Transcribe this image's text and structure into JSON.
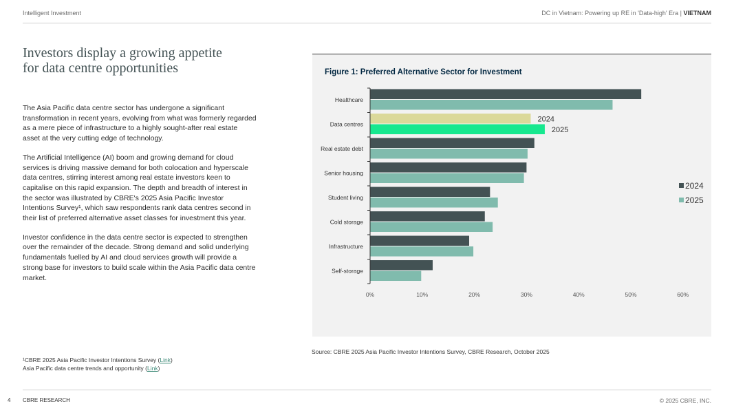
{
  "header": {
    "left": "Intelligent Investment",
    "right_prefix": "DC in Vietnam: Powering up RE in 'Data-high' Era | ",
    "right_country": "VIETNAM"
  },
  "main": {
    "title_line1": "Investors display a growing appetite",
    "title_line2": "for data centre opportunities",
    "paragraphs": [
      "The Asia Pacific data centre sector has undergone a significant transformation in recent years, evolving from what was formerly regarded as a mere piece of infrastructure to a highly sought-after real estate asset at the very cutting edge of technology.",
      "The Artificial Intelligence (AI) boom and growing demand for cloud services is driving massive demand for both colocation and hyperscale data centres, stirring interest among real estate investors keen to capitalise on this rapid expansion. The depth and breadth of interest in the sector was illustrated by CBRE's 2025 Asia Pacific Investor Intentions Survey¹, which saw respondents rank data centres second in their list of preferred alternative asset classes for investment this year.",
      "Investor confidence in the data centre sector is expected to strengthen over the remainder of the decade. Strong demand and solid underlying fundamentals fuelled by AI and cloud services growth will provide a strong base for investors to build scale within the Asia Pacific data centre market."
    ]
  },
  "figure": {
    "title": "Figure 1: Preferred Alternative Sector for Investment",
    "source": "Source: CBRE 2025 Asia Pacific Investor Intentions Survey, CBRE Research, October 2025"
  },
  "chart_data": {
    "type": "bar",
    "orientation": "horizontal",
    "title": "Figure 1: Preferred Alternative Sector for Investment",
    "categories": [
      "Healthcare",
      "Data centres",
      "Real estate debt",
      "Senior housing",
      "Student living",
      "Cold storage",
      "Infrastructure",
      "Self-storage"
    ],
    "series": [
      {
        "name": "2024",
        "values": [
          52.0,
          30.8,
          31.5,
          30.0,
          23.0,
          22.0,
          19.0,
          12.0
        ]
      },
      {
        "name": "2025",
        "values": [
          46.5,
          33.5,
          30.2,
          29.5,
          24.5,
          23.5,
          19.8,
          9.8
        ]
      }
    ],
    "xlim": [
      0,
      60
    ],
    "xticks": [
      "0%",
      "10%",
      "20%",
      "30%",
      "40%",
      "50%",
      "60%"
    ],
    "xtick_values": [
      0,
      10,
      20,
      30,
      40,
      50,
      60
    ],
    "legend": [
      "2024",
      "2025"
    ],
    "legend_position": "right",
    "highlight_category": "Data centres",
    "highlight_labels": [
      "2024",
      "2025"
    ],
    "colors": {
      "2024": "#435254",
      "2025": "#80BBAD",
      "highlight_2024": "#DBD99A",
      "highlight_2025": "#17E88F"
    }
  },
  "footnotes": [
    {
      "text": "¹CBRE 2025 Asia Pacific Investor Intentions Survey (",
      "link": "Link",
      "close": ")"
    },
    {
      "text": "Asia Pacific data centre trends and opportunity (",
      "link": "Link",
      "close": ")"
    }
  ],
  "footer": {
    "page": "4",
    "left": "CBRE RESEARCH",
    "right": "© 2025 CBRE, INC."
  }
}
